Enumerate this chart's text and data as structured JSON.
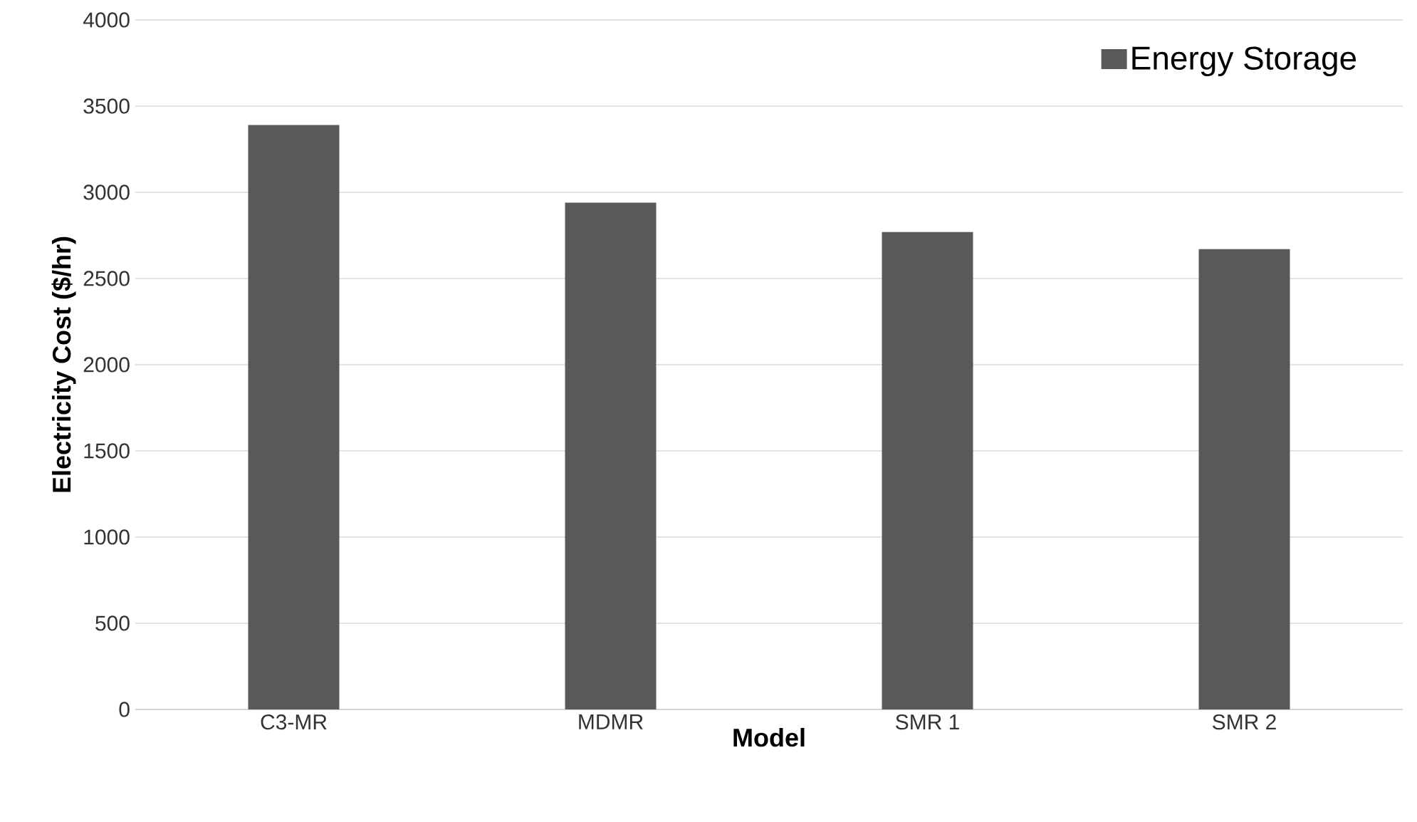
{
  "chart_data": {
    "type": "bar",
    "xlabel": "Model",
    "ylabel": "Electricity Cost ($/hr)",
    "categories": [
      "C3-MR",
      "MDMR",
      "SMR 1",
      "SMR 2"
    ],
    "series": [
      {
        "name": "Energy Storage",
        "color": "#595959",
        "values": [
          3390,
          2940,
          2770,
          2670
        ]
      }
    ],
    "ylim": [
      0,
      4000
    ],
    "yticks": [
      0,
      500,
      1000,
      1500,
      2000,
      2500,
      3000,
      3500,
      4000
    ],
    "grid": "y",
    "legend": "top right"
  }
}
